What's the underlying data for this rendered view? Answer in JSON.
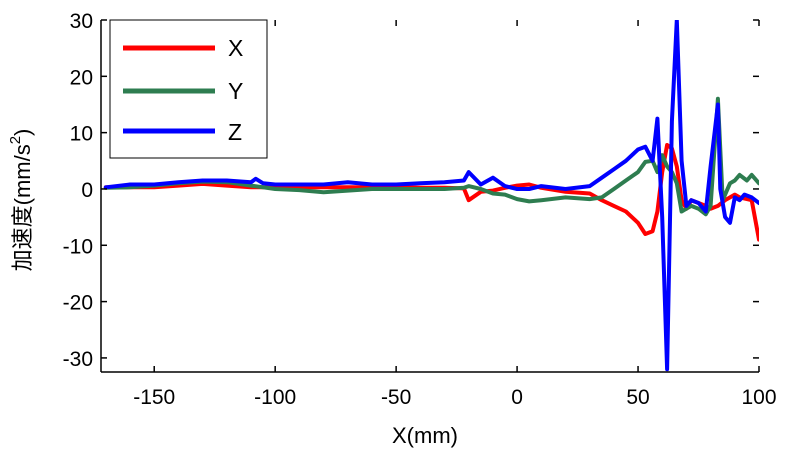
{
  "chart_data": {
    "type": "line",
    "xlabel": "X(mm)",
    "ylabel": "加速度(mm/s",
    "ylabel_superscript": "2",
    "ylabel_close": ")",
    "xlim": [
      -172,
      100
    ],
    "ylim": [
      -32.5,
      30
    ],
    "xticks": [
      -150,
      -100,
      -50,
      0,
      50,
      100
    ],
    "xtick_labels": [
      "-150",
      "-100",
      "-50",
      "0",
      "50",
      "100"
    ],
    "yticks": [
      30,
      20,
      10,
      0,
      -10,
      -20,
      -30
    ],
    "ytick_labels": [
      "30",
      "20",
      "10",
      "0",
      "-10",
      "-20",
      "-30"
    ],
    "grid": false,
    "legend_position": "top-left",
    "series": [
      {
        "name": "X",
        "color": "#ff0000",
        "x": [
          -170,
          -160,
          -150,
          -140,
          -130,
          -120,
          -110,
          -100,
          -90,
          -80,
          -70,
          -60,
          -50,
          -40,
          -30,
          -22,
          -20,
          -15,
          -10,
          -5,
          0,
          5,
          10,
          20,
          30,
          35,
          40,
          45,
          50,
          53,
          56,
          58,
          60,
          62,
          64,
          66,
          68,
          70,
          72,
          75,
          78,
          80,
          83,
          86,
          88,
          90,
          92,
          95,
          97,
          100
        ],
        "values": [
          0.3,
          0.3,
          0.3,
          0.6,
          0.9,
          0.6,
          0.3,
          0.3,
          0.3,
          0.3,
          0.3,
          0.3,
          0.3,
          0.2,
          0.2,
          0.1,
          -2.0,
          -0.5,
          -0.3,
          0.2,
          0.6,
          0.8,
          0.2,
          -0.5,
          -0.8,
          -2.0,
          -3.0,
          -4.0,
          -6.0,
          -8.0,
          -7.5,
          -4.0,
          3.0,
          7.8,
          7.2,
          4.0,
          -2.0,
          -3.5,
          -2.0,
          -2.5,
          -3.0,
          -3.5,
          -3.0,
          -2.0,
          -1.5,
          -1.0,
          -1.5,
          -1.8,
          -2.0,
          -9.0
        ]
      },
      {
        "name": "Y",
        "color": "#2e7d50",
        "x": [
          -170,
          -160,
          -150,
          -140,
          -130,
          -120,
          -110,
          -100,
          -90,
          -80,
          -70,
          -60,
          -50,
          -40,
          -30,
          -22,
          -20,
          -15,
          -10,
          -5,
          0,
          5,
          10,
          20,
          30,
          35,
          40,
          45,
          50,
          53,
          56,
          58,
          60,
          62,
          64,
          66,
          68,
          70,
          72,
          75,
          78,
          80,
          83,
          85,
          88,
          90,
          92,
          95,
          97,
          100
        ],
        "values": [
          0.2,
          0.3,
          0.6,
          1.0,
          1.3,
          1.2,
          0.6,
          0.0,
          -0.2,
          -0.6,
          -0.3,
          0.0,
          0.0,
          0.0,
          0.0,
          0.2,
          0.5,
          0.0,
          -0.8,
          -1.0,
          -1.8,
          -2.2,
          -2.0,
          -1.5,
          -1.8,
          -1.5,
          0.0,
          1.5,
          3.0,
          4.8,
          5.0,
          3.0,
          6.0,
          4.0,
          3.0,
          1.0,
          -4.0,
          -3.5,
          -3.0,
          -3.5,
          -4.5,
          -3.0,
          16.0,
          -2.0,
          1.0,
          1.5,
          2.5,
          1.5,
          2.5,
          1.0
        ]
      },
      {
        "name": "Z",
        "color": "#0000ff",
        "x": [
          -170,
          -160,
          -150,
          -140,
          -130,
          -120,
          -110,
          -108,
          -105,
          -100,
          -90,
          -80,
          -70,
          -60,
          -50,
          -40,
          -30,
          -22,
          -20,
          -15,
          -10,
          -5,
          0,
          5,
          10,
          20,
          30,
          35,
          40,
          45,
          50,
          53,
          56,
          58,
          60,
          62,
          64,
          66,
          68,
          70,
          72,
          75,
          78,
          80,
          83,
          84,
          86,
          88,
          90,
          92,
          94,
          97,
          100
        ],
        "values": [
          0.3,
          0.8,
          0.8,
          1.2,
          1.5,
          1.5,
          1.2,
          1.8,
          1.0,
          0.8,
          0.8,
          0.8,
          1.2,
          0.8,
          0.8,
          1.0,
          1.2,
          1.5,
          3.0,
          0.8,
          2.0,
          0.5,
          0.0,
          0.0,
          0.5,
          0.0,
          0.5,
          2.0,
          3.5,
          5.0,
          7.0,
          7.5,
          5.0,
          12.5,
          -5.0,
          -32.0,
          12.0,
          30.0,
          5.0,
          -3.0,
          -2.0,
          -2.5,
          -4.0,
          4.0,
          15.0,
          0.0,
          -5.0,
          -6.0,
          -1.5,
          -2.0,
          -1.0,
          -1.5,
          -2.5
        ]
      }
    ]
  }
}
